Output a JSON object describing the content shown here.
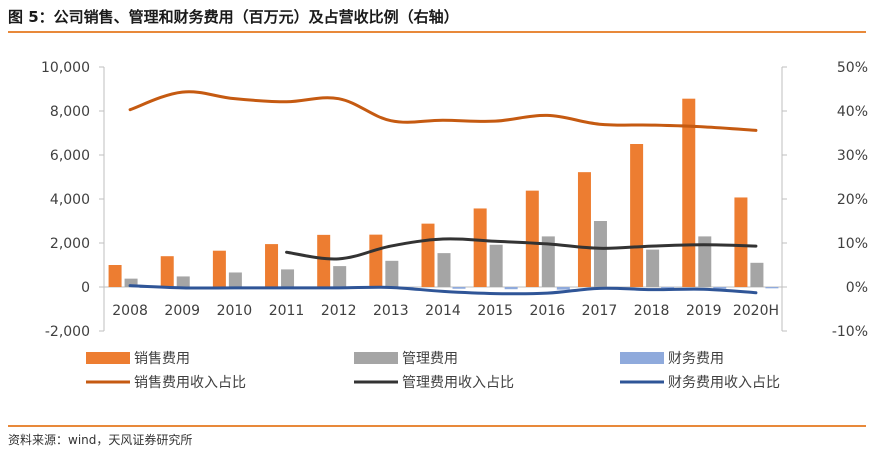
{
  "title": "图 5：公司销售、管理和财务费用（百万元）及占营收比例（右轴）",
  "source": "资料来源：wind，天风证券研究所",
  "colors": {
    "accent": "#e8893a",
    "sales_bar": "#ed7d31",
    "admin_bar": "#a5a5a5",
    "finance_bar": "#8faadc",
    "sales_ratio": "#c55a11",
    "admin_ratio": "#333333",
    "finance_ratio": "#2f5597"
  },
  "chart_data": {
    "type": "bar",
    "categories": [
      "2008",
      "2009",
      "2010",
      "2011",
      "2012",
      "2013",
      "2014",
      "2015",
      "2016",
      "2017",
      "2018",
      "2019",
      "2020H"
    ],
    "left_axis": {
      "ylim": [
        -2000,
        10000
      ],
      "ticks": [
        -2000,
        0,
        2000,
        4000,
        6000,
        8000,
        10000
      ],
      "tick_labels": [
        "-2,000",
        "0",
        "2,000",
        "4,000",
        "6,000",
        "8,000",
        "10,000"
      ]
    },
    "right_axis": {
      "ylim": [
        -10,
        50
      ],
      "ticks": [
        -10,
        0,
        10,
        20,
        30,
        40,
        50
      ],
      "tick_labels": [
        "-10%",
        "0%",
        "10%",
        "20%",
        "30%",
        "40%",
        "50%"
      ]
    },
    "bar_series": [
      {
        "name": "销售费用",
        "axis": "left",
        "values": [
          1000,
          1400,
          1650,
          1950,
          2370,
          2380,
          2880,
          3570,
          4380,
          5220,
          6500,
          8560,
          4070
        ]
      },
      {
        "name": "管理费用",
        "axis": "left",
        "values": [
          380,
          480,
          660,
          800,
          950,
          1190,
          1540,
          1920,
          2300,
          3000,
          1700,
          2300,
          1100
        ]
      },
      {
        "name": "财务费用",
        "axis": "left",
        "values": [
          -30,
          -20,
          -15,
          -20,
          -20,
          -30,
          -80,
          -100,
          -120,
          -60,
          -50,
          -80,
          -60
        ]
      }
    ],
    "line_series": [
      {
        "name": "销售费用收入占比",
        "axis": "right",
        "values": [
          40.3,
          44.3,
          42.8,
          42.1,
          42.8,
          37.8,
          37.9,
          37.7,
          39.0,
          37.0,
          36.8,
          36.4,
          35.6
        ]
      },
      {
        "name": "管理费用收入占比",
        "axis": "right",
        "values": [
          null,
          null,
          null,
          7.9,
          6.4,
          9.3,
          10.9,
          10.4,
          9.8,
          8.8,
          9.3,
          9.6,
          9.3
        ]
      },
      {
        "name": "财务费用收入占比",
        "axis": "right",
        "values": [
          0.3,
          -0.2,
          -0.2,
          -0.2,
          -0.2,
          -0.1,
          -1.0,
          -1.5,
          -1.4,
          -0.3,
          -0.6,
          -0.5,
          -1.3
        ]
      }
    ],
    "legend": [
      {
        "label": "销售费用",
        "kind": "bar",
        "color": "#ed7d31"
      },
      {
        "label": "管理费用",
        "kind": "bar",
        "color": "#a5a5a5"
      },
      {
        "label": "财务费用",
        "kind": "bar",
        "color": "#8faadc"
      },
      {
        "label": "销售费用收入占比",
        "kind": "line",
        "color": "#c55a11"
      },
      {
        "label": "管理费用收入占比",
        "kind": "line",
        "color": "#333333"
      },
      {
        "label": "财务费用收入占比",
        "kind": "line",
        "color": "#2f5597"
      }
    ],
    "legend_position": "bottom",
    "grid": false
  }
}
